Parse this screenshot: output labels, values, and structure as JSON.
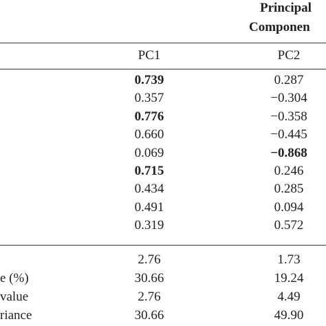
{
  "header": {
    "group_title_line1": "Principal",
    "group_title_line2": "Componen",
    "columns": [
      "PC1",
      "PC2"
    ]
  },
  "table": {
    "rows": [
      [
        "0.739",
        "0.287"
      ],
      [
        "0.357",
        "−0.304"
      ],
      [
        "0.776",
        "−0.358"
      ],
      [
        "0.660",
        "−0.445"
      ],
      [
        "0.069",
        "−0.868"
      ],
      [
        "0.715",
        "0.246"
      ],
      [
        "0.434",
        "0.285"
      ],
      [
        "0.491",
        "0.094"
      ],
      [
        "0.319",
        "0.572"
      ]
    ],
    "bold_cells": [
      [
        0,
        0
      ],
      [
        2,
        0
      ],
      [
        4,
        1
      ],
      [
        5,
        0
      ]
    ],
    "summary_rows": [
      {
        "label": null,
        "values": [
          "2.76",
          "1.73"
        ]
      },
      {
        "label": "e (%)",
        "values": [
          "30.66",
          "19.24"
        ]
      },
      {
        "label": "value",
        "values": [
          "2.76",
          "4.49"
        ]
      },
      {
        "label": "riance",
        "values": [
          "30.66",
          "49.90"
        ]
      }
    ]
  }
}
